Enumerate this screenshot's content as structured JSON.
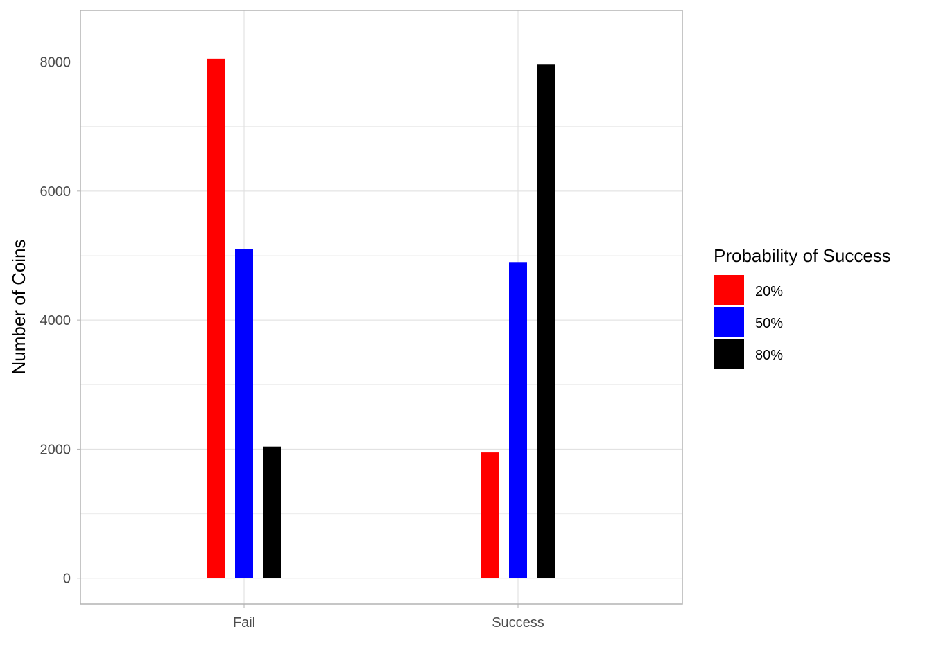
{
  "chart_data": {
    "type": "bar",
    "title": "",
    "xlabel": "",
    "ylabel": "Number of Coins",
    "categories": [
      "Fail",
      "Success"
    ],
    "series": [
      {
        "name": "20%",
        "color": "#ff0000",
        "values": [
          8050,
          1950
        ]
      },
      {
        "name": "50%",
        "color": "#0000ff",
        "values": [
          5100,
          4900
        ]
      },
      {
        "name": "80%",
        "color": "#000000",
        "values": [
          2040,
          7960
        ]
      }
    ],
    "ylim": [
      -400,
      8800
    ],
    "yticks": [
      0,
      2000,
      4000,
      6000,
      8000
    ],
    "grid": true,
    "legend": {
      "title": "Probability of Success",
      "position": "right"
    }
  }
}
